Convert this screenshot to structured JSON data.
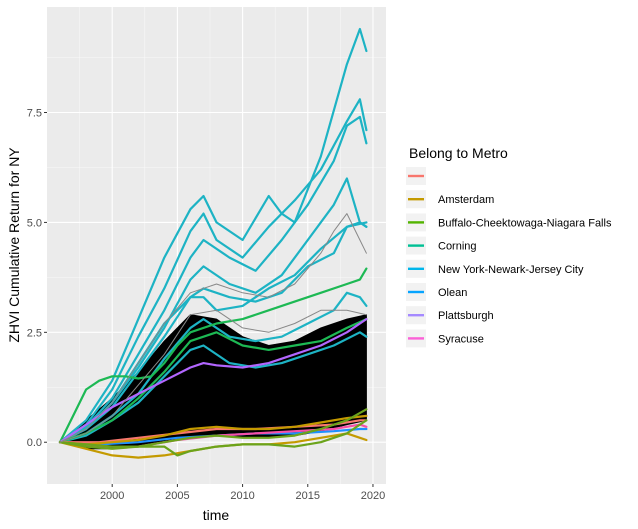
{
  "chart_data": {
    "type": "line",
    "title": "",
    "xlabel": "time",
    "ylabel": "ZHVI Cumulative Return for NY",
    "xlim": [
      1995.0,
      2021.0
    ],
    "ylim": [
      -0.95,
      9.9
    ],
    "xticks": [
      2000,
      2005,
      2010,
      2015,
      2020
    ],
    "xtick_labels": [
      "2000",
      "2005",
      "2010",
      "2015",
      "2020"
    ],
    "yticks": [
      0.0,
      2.5,
      5.0,
      7.5
    ],
    "ytick_labels": [
      "0.0",
      "2.5",
      "5.0",
      "7.5"
    ],
    "grid": true,
    "legend": {
      "title": "Belong to Metro",
      "placement": "right",
      "entries": [
        {
          "name": "",
          "color": "#F8766D"
        },
        {
          "name": "Amsterdam",
          "color": "#C49A00"
        },
        {
          "name": "Buffalo-Cheektowaga-Niagara Falls",
          "color": "#53B400"
        },
        {
          "name": "Corning",
          "color": "#00C094"
        },
        {
          "name": "New York-Newark-Jersey City",
          "color": "#00B6EB"
        },
        {
          "name": "Olean",
          "color": "#06A4FF"
        },
        {
          "name": "Plattsburgh",
          "color": "#A58AFF"
        },
        {
          "name": "Syracuse",
          "color": "#FB61D7"
        }
      ]
    },
    "colors": {
      "panel": "#EBEBEB",
      "grid_major": "#FFFFFF",
      "unaffiliated": "#000000",
      "unaffiliated_highlight": "#888888",
      "amsterdam": "#C49A00",
      "buffalo": "#6BA31B",
      "corning": "#1DB954",
      "newyork": "#1DB3C4",
      "olean": "#1E90FF",
      "plattsburgh": "#B266FF",
      "syracuse": "#F64FA8",
      "blank": "#F8766D"
    },
    "series": [
      {
        "name": "New York-Newark-Jersey City",
        "group": "newyork",
        "x": [
          1996,
          1998,
          2000,
          2002,
          2004,
          2006,
          2007,
          2008,
          2010,
          2012,
          2013,
          2014,
          2016,
          2018,
          2019,
          2019.5
        ],
        "y": [
          0,
          0.5,
          1.4,
          2.8,
          4.2,
          5.3,
          5.6,
          5.0,
          4.6,
          5.6,
          5.2,
          5.0,
          6.5,
          8.6,
          9.4,
          8.9
        ]
      },
      {
        "name": "New York-Newark-Jersey City",
        "group": "newyork",
        "x": [
          1996,
          1998,
          2000,
          2002,
          2004,
          2006,
          2007,
          2008,
          2010,
          2012,
          2014,
          2016,
          2018,
          2019,
          2019.5
        ],
        "y": [
          0,
          0.4,
          1.2,
          2.4,
          3.5,
          4.8,
          5.2,
          4.6,
          4.2,
          4.9,
          5.5,
          6.2,
          7.3,
          7.8,
          7.1
        ]
      },
      {
        "name": "New York-Newark-Jersey City",
        "group": "newyork",
        "x": [
          1996,
          1998,
          2000,
          2002,
          2004,
          2006,
          2007,
          2009,
          2011,
          2013,
          2015,
          2017,
          2018,
          2019,
          2019.5
        ],
        "y": [
          0,
          0.35,
          1.0,
          2.0,
          3.0,
          4.2,
          4.6,
          4.2,
          3.9,
          4.6,
          5.4,
          6.4,
          7.2,
          7.4,
          6.8
        ]
      },
      {
        "name": "New York-Newark-Jersey City",
        "group": "newyork",
        "x": [
          1996,
          1998,
          2000,
          2002,
          2004,
          2006,
          2007,
          2009,
          2011,
          2013,
          2015,
          2017,
          2018,
          2019,
          2019.5
        ],
        "y": [
          0,
          0.3,
          0.9,
          1.7,
          2.6,
          3.7,
          4.0,
          3.6,
          3.4,
          3.8,
          4.6,
          5.4,
          6.0,
          5.0,
          4.9
        ]
      },
      {
        "name": "New York-Newark-Jersey City",
        "group": "newyork",
        "x": [
          1996,
          1998,
          2000,
          2002,
          2004,
          2006,
          2007,
          2009,
          2011,
          2013,
          2015,
          2017,
          2018,
          2019,
          2019.5
        ],
        "y": [
          0,
          0.3,
          0.8,
          1.6,
          2.4,
          3.3,
          3.5,
          3.3,
          3.2,
          3.4,
          4.0,
          4.3,
          4.9,
          5.0,
          4.9
        ]
      },
      {
        "name": "New York-Newark-Jersey City",
        "group": "newyork",
        "x": [
          1996,
          1998,
          2000,
          2002,
          2004,
          2006,
          2007,
          2009,
          2011,
          2013,
          2015,
          2017,
          2018,
          2019,
          2019.5
        ],
        "y": [
          0,
          0.2,
          0.6,
          1.1,
          1.9,
          2.6,
          2.8,
          2.4,
          2.3,
          2.4,
          2.7,
          3.0,
          3.4,
          3.3,
          3.1
        ]
      },
      {
        "name": "New York-Newark-Jersey City",
        "group": "newyork",
        "x": [
          1996,
          1998,
          2000,
          2002,
          2004,
          2006,
          2007,
          2009,
          2011,
          2013,
          2015,
          2017,
          2019,
          2019.5
        ],
        "y": [
          0,
          0.15,
          0.5,
          0.9,
          1.5,
          2.1,
          2.2,
          1.8,
          1.7,
          1.8,
          2.0,
          2.2,
          2.5,
          2.4
        ]
      },
      {
        "name": "New York-Newark-Jersey City",
        "group": "newyork",
        "x": [
          1996,
          1998,
          2000,
          2002,
          2004,
          2006,
          2007,
          2008,
          2010,
          2012,
          2014,
          2016,
          2018,
          2019.5
        ],
        "y": [
          0,
          0.3,
          0.9,
          1.8,
          2.7,
          3.3,
          3.3,
          3.0,
          3.1,
          3.5,
          3.8,
          4.4,
          4.9,
          5.0
        ]
      },
      {
        "name": "Corning",
        "group": "corning",
        "x": [
          1996,
          1997,
          1998,
          1999,
          2000,
          2001,
          2002,
          2003,
          2004,
          2005,
          2006,
          2008,
          2010,
          2012,
          2014,
          2016,
          2018,
          2019,
          2019.5
        ],
        "y": [
          0,
          0.6,
          1.2,
          1.4,
          1.5,
          1.5,
          1.45,
          1.5,
          1.8,
          2.2,
          2.5,
          2.7,
          2.8,
          3.0,
          3.2,
          3.4,
          3.6,
          3.7,
          3.95
        ]
      },
      {
        "name": "Corning",
        "group": "corning",
        "x": [
          1996,
          1998,
          2000,
          2002,
          2004,
          2006,
          2008,
          2010,
          2012,
          2014,
          2016,
          2018,
          2019.5
        ],
        "y": [
          0,
          0.2,
          0.5,
          1.0,
          1.6,
          2.3,
          2.5,
          2.2,
          2.1,
          2.2,
          2.3,
          2.6,
          2.8
        ]
      },
      {
        "name": "Plattsburgh",
        "group": "plattsburgh",
        "x": [
          1996,
          1998,
          2000,
          2002,
          2004,
          2006,
          2007,
          2008,
          2010,
          2012,
          2014,
          2016,
          2018,
          2019,
          2019.5
        ],
        "y": [
          0,
          0.4,
          0.8,
          1.1,
          1.4,
          1.7,
          1.8,
          1.75,
          1.7,
          1.8,
          2.0,
          2.2,
          2.5,
          2.7,
          2.8
        ]
      },
      {
        "name": "Olean",
        "group": "olean",
        "x": [
          1996,
          1999,
          2002,
          2005,
          2008,
          2011,
          2014,
          2017,
          2019,
          2019.5
        ],
        "y": [
          0,
          -0.05,
          0.0,
          0.1,
          0.15,
          0.2,
          0.2,
          0.25,
          0.3,
          0.3
        ]
      },
      {
        "name": "Syracuse",
        "group": "syracuse",
        "x": [
          1996,
          1999,
          2002,
          2005,
          2008,
          2011,
          2014,
          2017,
          2019,
          2019.5
        ],
        "y": [
          0,
          -0.1,
          -0.1,
          0.05,
          0.15,
          0.2,
          0.25,
          0.3,
          0.4,
          0.35
        ]
      },
      {
        "name": "",
        "group": "blank",
        "x": [
          1996,
          1999,
          2002,
          2005,
          2008,
          2011,
          2014,
          2017,
          2019,
          2019.5
        ],
        "y": [
          0,
          0.0,
          0.1,
          0.2,
          0.3,
          0.3,
          0.35,
          0.4,
          0.5,
          0.5
        ]
      },
      {
        "name": "Amsterdam",
        "group": "amsterdam",
        "x": [
          1996,
          1998,
          2000,
          2002,
          2004,
          2006,
          2008,
          2010,
          2012,
          2014,
          2016,
          2018,
          2019,
          2019.5
        ],
        "y": [
          0,
          -0.15,
          -0.3,
          -0.35,
          -0.3,
          -0.2,
          -0.1,
          -0.05,
          -0.05,
          0.0,
          0.1,
          0.2,
          0.1,
          0.05
        ]
      },
      {
        "name": "Amsterdam",
        "group": "amsterdam",
        "x": [
          1996,
          1998,
          2000,
          2002,
          2004,
          2006,
          2008,
          2010,
          2012,
          2014,
          2016,
          2018,
          2019.5
        ],
        "y": [
          0,
          -0.05,
          0.0,
          0.05,
          0.15,
          0.3,
          0.35,
          0.3,
          0.3,
          0.35,
          0.45,
          0.55,
          0.6
        ]
      },
      {
        "name": "Buffalo-Cheektowaga-Niagara Falls",
        "group": "buffalo",
        "x": [
          1996,
          1998,
          2000,
          2002,
          2004,
          2005,
          2006,
          2008,
          2010,
          2012,
          2014,
          2016,
          2018,
          2019,
          2019.5
        ],
        "y": [
          0,
          -0.05,
          -0.1,
          -0.1,
          -0.1,
          -0.3,
          -0.2,
          -0.1,
          -0.05,
          -0.05,
          -0.1,
          0.0,
          0.2,
          0.4,
          0.5
        ]
      },
      {
        "name": "Buffalo-Cheektowaga-Niagara Falls",
        "group": "buffalo",
        "x": [
          1996,
          1998,
          2000,
          2002,
          2004,
          2006,
          2008,
          2010,
          2012,
          2014,
          2016,
          2018,
          2019.5
        ],
        "y": [
          0,
          -0.1,
          -0.15,
          -0.1,
          0.0,
          0.1,
          0.15,
          0.1,
          0.1,
          0.15,
          0.3,
          0.5,
          0.75
        ]
      },
      {
        "name": "",
        "group": "unaffiliated_highlight",
        "x": [
          1996,
          1998,
          2000,
          2002,
          2004,
          2006,
          2008,
          2010,
          2012,
          2014,
          2016,
          2017,
          2018,
          2019,
          2019.5
        ],
        "y": [
          0,
          0.3,
          0.9,
          1.8,
          2.7,
          3.4,
          3.6,
          3.4,
          3.3,
          3.6,
          4.3,
          4.8,
          5.2,
          4.6,
          4.3
        ]
      },
      {
        "name": "",
        "group": "unaffiliated_highlight",
        "x": [
          1996,
          1998,
          2000,
          2002,
          2004,
          2006,
          2008,
          2010,
          2012,
          2014,
          2016,
          2018,
          2019.5
        ],
        "y": [
          0,
          0.2,
          0.6,
          1.3,
          2.0,
          2.9,
          3.0,
          2.6,
          2.5,
          2.7,
          3.0,
          3.0,
          2.9
        ]
      }
    ],
    "unaffiliated_band": {
      "x": [
        1996,
        1998,
        2000,
        2002,
        2004,
        2006,
        2008,
        2010,
        2012,
        2014,
        2016,
        2018,
        2019.5
      ],
      "upper": [
        0,
        0.5,
        1.0,
        1.6,
        2.3,
        2.9,
        2.8,
        2.4,
        2.2,
        2.3,
        2.6,
        2.8,
        2.9
      ],
      "lower": [
        0,
        -0.15,
        -0.15,
        -0.1,
        0.0,
        0.1,
        0.15,
        0.1,
        0.1,
        0.15,
        0.25,
        0.4,
        0.5
      ]
    }
  }
}
